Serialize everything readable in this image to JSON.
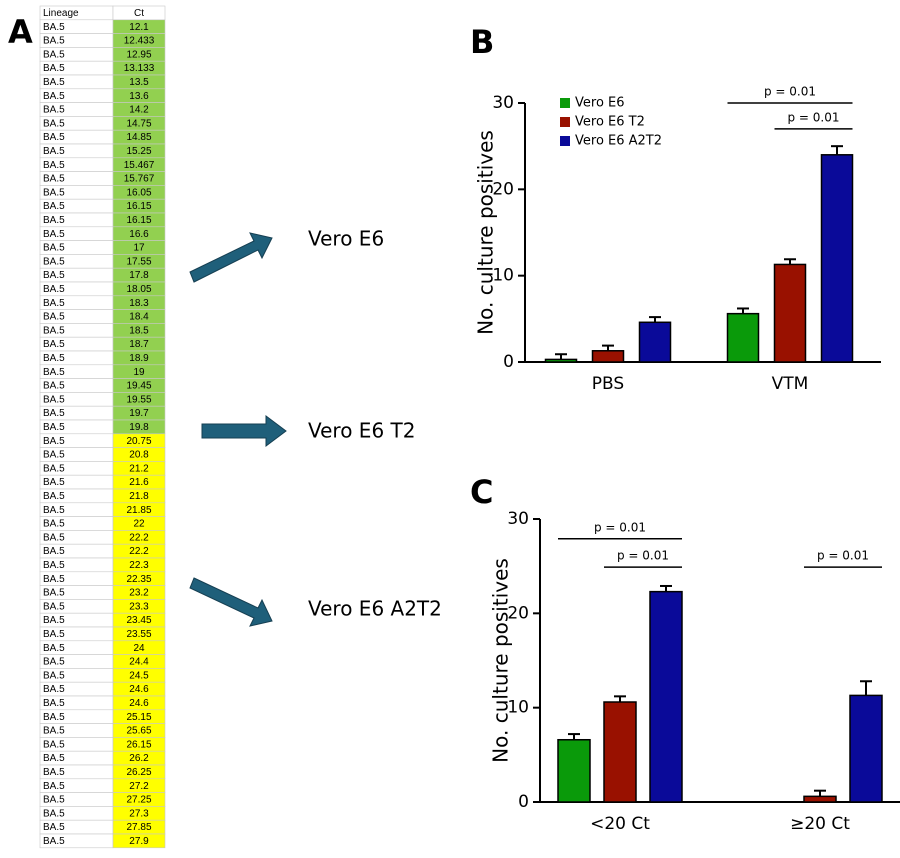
{
  "panel_a": {
    "label": "A",
    "header": [
      "Lineage",
      "Ct"
    ],
    "groups": [
      {
        "color": "#92d050",
        "rows": [
          [
            "BA.5",
            "12.1"
          ],
          [
            "BA.5",
            "12.433"
          ],
          [
            "BA.5",
            "12.95"
          ],
          [
            "BA.5",
            "13.133"
          ],
          [
            "BA.5",
            "13.5"
          ],
          [
            "BA.5",
            "13.6"
          ],
          [
            "BA.5",
            "14.2"
          ],
          [
            "BA.5",
            "14.75"
          ],
          [
            "BA.5",
            "14.85"
          ],
          [
            "BA.5",
            "15.25"
          ],
          [
            "BA.5",
            "15.467"
          ],
          [
            "BA.5",
            "15.767"
          ],
          [
            "BA.5",
            "16.05"
          ],
          [
            "BA.5",
            "16.15"
          ],
          [
            "BA.5",
            "16.15"
          ],
          [
            "BA.5",
            "16.6"
          ],
          [
            "BA.5",
            "17"
          ],
          [
            "BA.5",
            "17.55"
          ],
          [
            "BA.5",
            "17.8"
          ],
          [
            "BA.5",
            "18.05"
          ],
          [
            "BA.5",
            "18.3"
          ],
          [
            "BA.5",
            "18.4"
          ],
          [
            "BA.5",
            "18.5"
          ],
          [
            "BA.5",
            "18.7"
          ],
          [
            "BA.5",
            "18.9"
          ],
          [
            "BA.5",
            "19"
          ],
          [
            "BA.5",
            "19.45"
          ],
          [
            "BA.5",
            "19.55"
          ],
          [
            "BA.5",
            "19.7"
          ],
          [
            "BA.5",
            "19.8"
          ]
        ]
      },
      {
        "color": "#ffff00",
        "rows": [
          [
            "BA.5",
            "20.75"
          ],
          [
            "BA.5",
            "20.8"
          ],
          [
            "BA.5",
            "21.2"
          ],
          [
            "BA.5",
            "21.6"
          ],
          [
            "BA.5",
            "21.8"
          ],
          [
            "BA.5",
            "21.85"
          ],
          [
            "BA.5",
            "22"
          ],
          [
            "BA.5",
            "22.2"
          ],
          [
            "BA.5",
            "22.2"
          ],
          [
            "BA.5",
            "22.3"
          ],
          [
            "BA.5",
            "22.35"
          ],
          [
            "BA.5",
            "23.2"
          ],
          [
            "BA.5",
            "23.3"
          ],
          [
            "BA.5",
            "23.45"
          ],
          [
            "BA.5",
            "23.55"
          ],
          [
            "BA.5",
            "24"
          ],
          [
            "BA.5",
            "24.4"
          ],
          [
            "BA.5",
            "24.5"
          ],
          [
            "BA.5",
            "24.6"
          ],
          [
            "BA.5",
            "24.6"
          ],
          [
            "BA.5",
            "25.15"
          ],
          [
            "BA.5",
            "25.65"
          ],
          [
            "BA.5",
            "26.15"
          ],
          [
            "BA.5",
            "26.2"
          ],
          [
            "BA.5",
            "26.25"
          ],
          [
            "BA.5",
            "27.2"
          ],
          [
            "BA.5",
            "27.25"
          ],
          [
            "BA.5",
            "27.3"
          ],
          [
            "BA.5",
            "27.85"
          ],
          [
            "BA.5",
            "27.9"
          ]
        ]
      }
    ]
  },
  "arrow_labels": [
    "Vero E6",
    "Vero E6 T2",
    "Vero E6 A2T2"
  ],
  "chart_data": [
    {
      "type": "bar",
      "panel": "B",
      "ylabel": "No. culture positives",
      "categories": [
        "PBS",
        "VTM"
      ],
      "series": [
        {
          "name": "Vero E6",
          "color": "#0a9a0a",
          "values": [
            0.3,
            5.6
          ],
          "errors": [
            0.6,
            0.6
          ]
        },
        {
          "name": "Vero E6 T2",
          "color": "#991100",
          "values": [
            1.3,
            11.3
          ],
          "errors": [
            0.6,
            0.6
          ]
        },
        {
          "name": "Vero E6 A2T2",
          "color": "#0a0a99",
          "values": [
            4.6,
            24
          ],
          "errors": [
            0.6,
            1
          ]
        }
      ],
      "ylim": [
        0,
        30
      ],
      "yticks": [
        0,
        10,
        20,
        30
      ],
      "legend": "top-left",
      "annotations": [
        {
          "text": "p = 0.01",
          "category": "VTM",
          "between": [
            "Vero E6",
            "Vero E6 A2T2"
          ]
        },
        {
          "text": "p = 0.01",
          "category": "VTM",
          "between": [
            "Vero E6 T2",
            "Vero E6 A2T2"
          ]
        }
      ]
    },
    {
      "type": "bar",
      "panel": "C",
      "ylabel": "No. culture positives",
      "categories": [
        "<20 Ct",
        "≥20 Ct"
      ],
      "series": [
        {
          "name": "Vero E6",
          "color": "#0a9a0a",
          "values": [
            6.6,
            0
          ],
          "errors": [
            0.6,
            null
          ]
        },
        {
          "name": "Vero E6 T2",
          "color": "#991100",
          "values": [
            10.6,
            0.6
          ],
          "errors": [
            0.6,
            0.6
          ]
        },
        {
          "name": "Vero E6 A2T2",
          "color": "#0a0a99",
          "values": [
            22.3,
            11.3
          ],
          "errors": [
            0.6,
            1.5
          ]
        }
      ],
      "ylim": [
        0,
        30
      ],
      "yticks": [
        0,
        10,
        20,
        30
      ],
      "annotations": [
        {
          "text": "p = 0.01",
          "category": "<20 Ct",
          "between": [
            "Vero E6",
            "Vero E6 A2T2"
          ]
        },
        {
          "text": "p = 0.01",
          "category": "<20 Ct",
          "between": [
            "Vero E6 T2",
            "Vero E6 A2T2"
          ]
        },
        {
          "text": "p = 0.01",
          "category": "≥20 Ct",
          "between": [
            "Vero E6 T2",
            "Vero E6 A2T2"
          ]
        }
      ]
    }
  ]
}
